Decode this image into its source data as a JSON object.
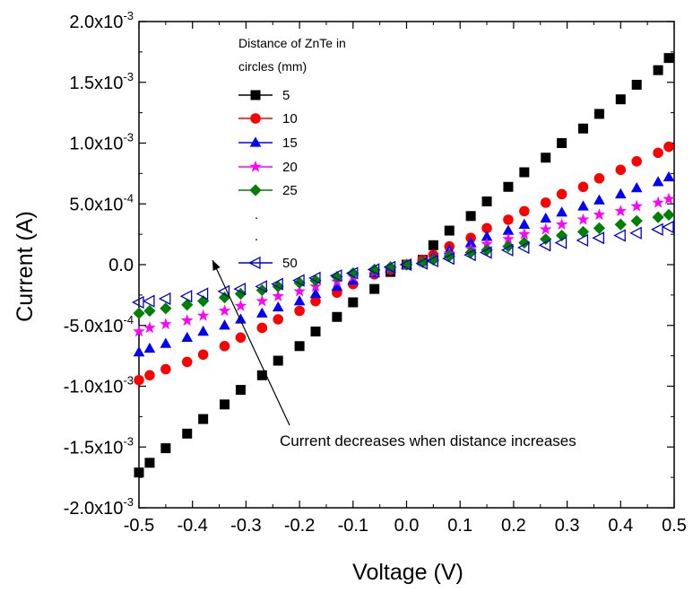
{
  "chart_data": {
    "type": "scatter",
    "title": "",
    "xlabel": "Voltage (V)",
    "ylabel": "Current (A)",
    "xlim": [
      -0.5,
      0.5
    ],
    "ylim": [
      -0.002,
      0.002
    ],
    "x_ticks": [
      "-0.5",
      "-0.4",
      "-0.3",
      "-0.2",
      "-0.1",
      "0.0",
      "0.1",
      "0.2",
      "0.3",
      "0.4",
      "0.5"
    ],
    "y_ticks": [
      {
        "base": "-2.0x10",
        "exp": "-3"
      },
      {
        "base": "-1.5x10",
        "exp": "-3"
      },
      {
        "base": "-1.0x10",
        "exp": "-3"
      },
      {
        "base": "-5.0x10",
        "exp": "-4"
      },
      {
        "base": "0.0",
        "exp": ""
      },
      {
        "base": "5.0x10",
        "exp": "-4"
      },
      {
        "base": "1.0x10",
        "exp": "-3"
      },
      {
        "base": "1.5x10",
        "exp": "-3"
      },
      {
        "base": "2.0x10",
        "exp": "-3"
      }
    ],
    "grid": false,
    "legend": {
      "title_line1": "Distance of ZnTe in",
      "title_line2": "circles (mm)",
      "placement": "top-left",
      "extra_dots": [
        ".",
        "."
      ]
    },
    "annotation": {
      "text": "Current decreases when distance increases",
      "arrow_from": [
        -0.055,
        -0.00119
      ],
      "arrow_to": [
        -0.375,
        -0.0
      ]
    },
    "x": [
      -0.5,
      -0.48,
      -0.45,
      -0.41,
      -0.38,
      -0.34,
      -0.31,
      -0.27,
      -0.24,
      -0.2,
      -0.17,
      -0.13,
      -0.1,
      -0.06,
      -0.03,
      0.0,
      0.03,
      0.05,
      0.08,
      0.12,
      0.15,
      0.19,
      0.22,
      0.26,
      0.29,
      0.33,
      0.36,
      0.4,
      0.43,
      0.47,
      0.49
    ],
    "series": [
      {
        "name": "5",
        "color": "#000000",
        "marker": "square",
        "filled": true,
        "values": [
          -0.00171,
          -0.00163,
          -0.00151,
          -0.00139,
          -0.00127,
          -0.00115,
          -0.00103,
          -0.00091,
          -0.00079,
          -0.00067,
          -0.00055,
          -0.00043,
          -0.00031,
          -0.0002,
          -6e-05,
          0.0,
          4e-05,
          0.00016,
          0.00028,
          0.0004,
          0.00052,
          0.00064,
          0.00076,
          0.00088,
          0.001,
          0.00112,
          0.00124,
          0.00136,
          0.00148,
          0.0016,
          0.0017
        ]
      },
      {
        "name": "10",
        "color": "#ff0000",
        "marker": "circle",
        "filled": true,
        "values": [
          -0.00095,
          -0.00091,
          -0.00086,
          -0.0008,
          -0.00074,
          -0.00067,
          -0.0006,
          -0.00052,
          -0.00045,
          -0.00038,
          -0.0003,
          -0.00023,
          -0.00016,
          -8e-05,
          -4e-05,
          0.0,
          4e-05,
          8e-05,
          0.00015,
          0.00022,
          0.0003,
          0.00037,
          0.00044,
          0.00051,
          0.00058,
          0.00064,
          0.00071,
          0.00078,
          0.00085,
          0.00092,
          0.00097
        ]
      },
      {
        "name": "15",
        "color": "#0000ff",
        "marker": "triangle",
        "filled": true,
        "values": [
          -0.00072,
          -0.00069,
          -0.00065,
          -0.0006,
          -0.00055,
          -0.0005,
          -0.00045,
          -0.0004,
          -0.00035,
          -0.0003,
          -0.00024,
          -0.00018,
          -0.00013,
          -7e-05,
          -3e-05,
          0.0,
          3e-05,
          6e-05,
          0.00012,
          0.00018,
          0.00023,
          0.00028,
          0.00033,
          0.00038,
          0.00043,
          0.00048,
          0.00053,
          0.00058,
          0.00063,
          0.00068,
          0.00072
        ]
      },
      {
        "name": "20",
        "color": "#ff00ff",
        "marker": "star",
        "filled": true,
        "values": [
          -0.00055,
          -0.00052,
          -0.00049,
          -0.00046,
          -0.00042,
          -0.00038,
          -0.00034,
          -0.0003,
          -0.00026,
          -0.00022,
          -0.00018,
          -0.00014,
          -0.0001,
          -6e-05,
          -3e-05,
          0.0,
          2e-05,
          5e-05,
          9e-05,
          0.00013,
          0.00017,
          0.00021,
          0.00025,
          0.00029,
          0.00033,
          0.00037,
          0.00041,
          0.00044,
          0.00048,
          0.00051,
          0.00054
        ]
      },
      {
        "name": "25",
        "color": "#008000",
        "marker": "diamond",
        "filled": true,
        "values": [
          -0.0004,
          -0.00038,
          -0.00036,
          -0.00033,
          -0.0003,
          -0.00027,
          -0.00024,
          -0.00021,
          -0.00018,
          -0.00015,
          -0.00013,
          -0.0001,
          -7e-05,
          -4e-05,
          -2e-05,
          0.0,
          2e-05,
          4e-05,
          7e-05,
          0.0001,
          0.00012,
          0.00015,
          0.00018,
          0.00021,
          0.00024,
          0.00027,
          0.0003,
          0.00033,
          0.00036,
          0.00039,
          0.00041
        ]
      },
      {
        "name": "50",
        "color": "#0000cc",
        "marker": "triangle-left",
        "filled": false,
        "values": [
          -0.00031,
          -0.0003,
          -0.00028,
          -0.00026,
          -0.00024,
          -0.00022,
          -0.0002,
          -0.00018,
          -0.00016,
          -0.00013,
          -0.00011,
          -9e-05,
          -7e-05,
          -4e-05,
          -2e-05,
          0.0,
          1e-05,
          3e-05,
          5e-05,
          8e-05,
          0.0001,
          0.00012,
          0.00014,
          0.00016,
          0.00018,
          0.0002,
          0.00022,
          0.00024,
          0.00026,
          0.00029,
          0.00031
        ]
      }
    ]
  }
}
